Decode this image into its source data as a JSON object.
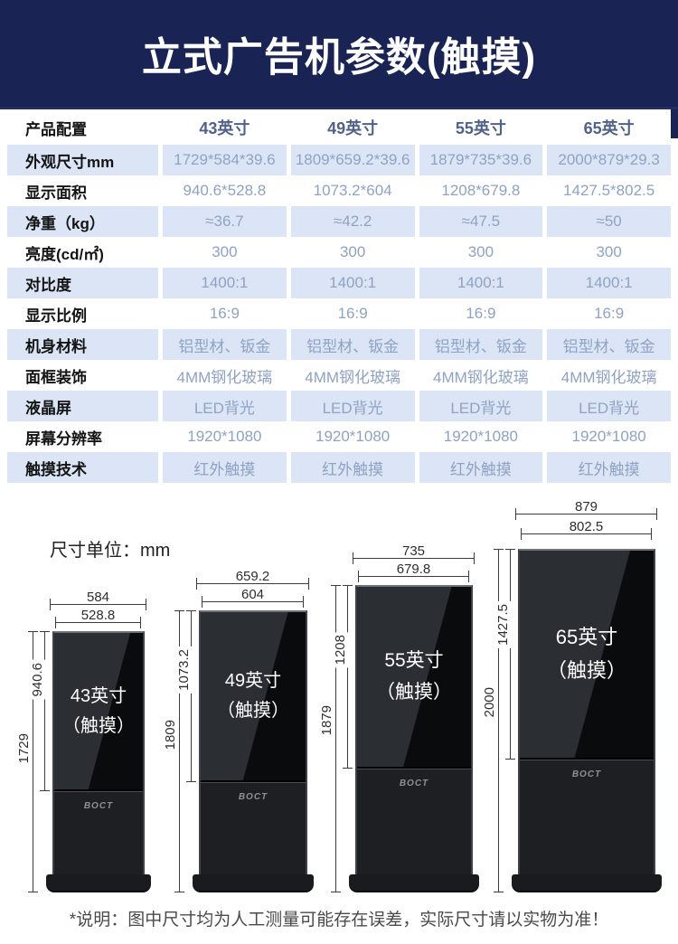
{
  "banner": {
    "title": "立式广告机参数(触摸)",
    "bg_color": "#1a2454",
    "text_color": "#ffffff"
  },
  "table": {
    "row_alt_color": "#dbe5f6",
    "value_text_color": "#90a2c4",
    "header": {
      "label": "产品配置",
      "columns": [
        "43英寸",
        "49英寸",
        "55英寸",
        "65英寸"
      ]
    },
    "rows": [
      {
        "label": "外观尺寸mm",
        "values": [
          "1729*584*39.6",
          "1809*659.2*39.6",
          "1879*735*39.6",
          "2000*879*29.3"
        ]
      },
      {
        "label": "显示面积",
        "values": [
          "940.6*528.8",
          "1073.2*604",
          "1208*679.8",
          "1427.5*802.5"
        ]
      },
      {
        "label": "净重（kg）",
        "values": [
          "≈36.7",
          "≈42.2",
          "≈47.5",
          "≈50"
        ]
      },
      {
        "label": "亮度(cd/㎡)",
        "values": [
          "300",
          "300",
          "300",
          "300"
        ]
      },
      {
        "label": "对比度",
        "values": [
          "1400:1",
          "1400:1",
          "1400:1",
          "1400:1"
        ]
      },
      {
        "label": "显示比例",
        "values": [
          "16:9",
          "16:9",
          "16:9",
          "16:9"
        ]
      },
      {
        "label": "机身材料",
        "values": [
          "铝型材、钣金",
          "铝型材、钣金",
          "铝型材、钣金",
          "铝型材、钣金"
        ]
      },
      {
        "label": "面框装饰",
        "values": [
          "4MM钢化玻璃",
          "4MM钢化玻璃",
          "4MM钢化玻璃",
          "4MM钢化玻璃"
        ]
      },
      {
        "label": "液晶屏",
        "values": [
          "LED背光",
          "LED背光",
          "LED背光",
          "LED背光"
        ]
      },
      {
        "label": "屏幕分辨率",
        "values": [
          "1920*1080",
          "1920*1080",
          "1920*1080",
          "1920*1080"
        ]
      },
      {
        "label": "触摸技术",
        "values": [
          "红外触摸",
          "红外触摸",
          "红外触摸",
          "红外触摸"
        ]
      }
    ]
  },
  "diagram": {
    "unit_note": "尺寸单位：mm",
    "models": [
      {
        "name": "43英寸",
        "sub": "（触摸）",
        "logo": "BOCT",
        "width_outer": "584",
        "width_inner": "528.8",
        "height_inner": "940.6",
        "height_outer": "1729"
      },
      {
        "name": "49英寸",
        "sub": "（触摸）",
        "logo": "BOCT",
        "width_outer": "659.2",
        "width_inner": "604",
        "height_inner": "1073.2",
        "height_outer": "1809"
      },
      {
        "name": "55英寸",
        "sub": "（触摸）",
        "logo": "BOCT",
        "width_outer": "735",
        "width_inner": "679.8",
        "height_inner": "1208",
        "height_outer": "1879"
      },
      {
        "name": "65英寸",
        "sub": "（触摸）",
        "logo": "BOCT",
        "width_outer": "879",
        "width_inner": "802.5",
        "height_inner": "1427.5",
        "height_outer": "2000"
      }
    ]
  },
  "footer": {
    "note": "*说明：图中尺寸均为人工测量可能存在误差，实际尺寸请以实物为准！"
  }
}
